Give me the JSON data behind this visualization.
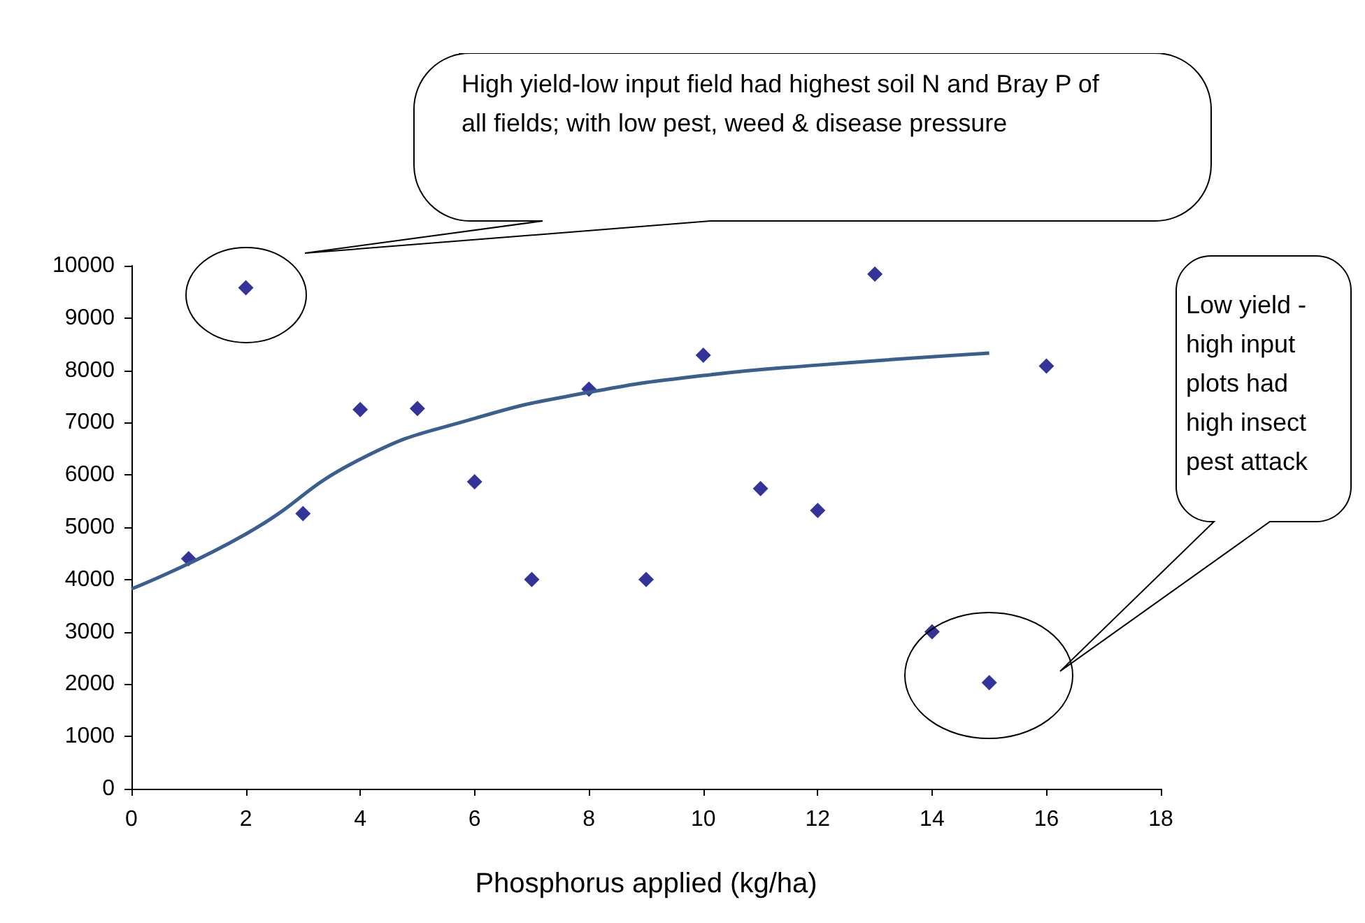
{
  "chart_data": {
    "type": "scatter",
    "xlabel": "Phosphorus applied (kg/ha)",
    "x": [
      1,
      2,
      3,
      4,
      5,
      6,
      7,
      8,
      9,
      10,
      11,
      12,
      13,
      14,
      15,
      16
    ],
    "series": [
      {
        "type": "scatter",
        "color": "#000080",
        "marker": "diamond",
        "values": [
          4400,
          9580,
          5260,
          7250,
          7270,
          5870,
          4000,
          7640,
          4000,
          8290,
          5740,
          5320,
          9840,
          3000,
          2030,
          8080
        ]
      },
      {
        "type": "line",
        "color": "#3a5f8f",
        "marker": "none",
        "line_style": "solid",
        "x": [
          0,
          2,
          4,
          6,
          8,
          10,
          12,
          15
        ],
        "values": [
          3820,
          4870,
          6300,
          7080,
          7580,
          7900,
          8100,
          8330
        ]
      }
    ],
    "xlim": [
      0,
      18
    ],
    "xticks": [
      0,
      2,
      4,
      6,
      8,
      10,
      12,
      14,
      16,
      18
    ],
    "ylim": [
      0,
      10000
    ],
    "yticks": [
      0,
      1000,
      2000,
      3000,
      4000,
      5000,
      6000,
      7000,
      8000,
      9000,
      10000
    ],
    "grid": false,
    "annotations": [
      "High yield-low input field had highest soil N and Bray P of all fields; with low pest, weed & disease pressure",
      "Low yield - high input plots had high insect pest attack"
    ]
  }
}
